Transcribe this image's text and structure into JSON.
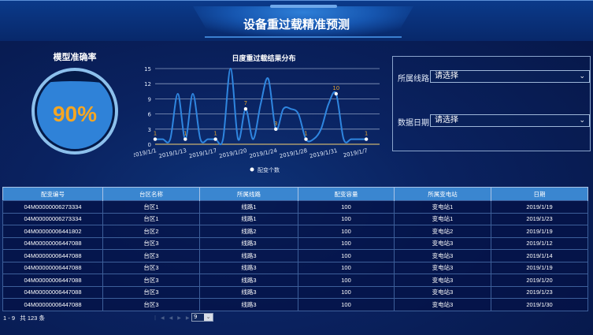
{
  "header": {
    "title": "设备重过载精准预测"
  },
  "gauge": {
    "title": "模型准确率",
    "value_label": "90%",
    "value": 0.9,
    "fill_color": "#2f82d8",
    "text_color": "#f5a623"
  },
  "chart_data": {
    "type": "line",
    "title": "日度重过载结果分布",
    "legend": "bottom",
    "series_name": "配变个数",
    "ylim": [
      0,
      15
    ],
    "yticks": [
      "0",
      "3",
      "6",
      "9",
      "12",
      "15"
    ],
    "xtick_labels": [
      "2019/1/1",
      "2019/1/13",
      "2019/1/17",
      "2019/1/20",
      "2019/1/24",
      "2019/1/28",
      "2019/1/31",
      "2019/1/7"
    ],
    "values": [
      1,
      1,
      1,
      10,
      1,
      10,
      1,
      1,
      1,
      1,
      15,
      1,
      7,
      1,
      8,
      13,
      3,
      7,
      7,
      6,
      1,
      1,
      3,
      8,
      10,
      1,
      1,
      1,
      1
    ],
    "labeled_points": [
      {
        "index": 0,
        "label": "1"
      },
      {
        "index": 4,
        "label": "1"
      },
      {
        "index": 8,
        "label": "1"
      },
      {
        "index": 12,
        "label": "7"
      },
      {
        "index": 16,
        "label": "3"
      },
      {
        "index": 20,
        "label": "1"
      },
      {
        "index": 24,
        "label": "10"
      },
      {
        "index": 28,
        "label": "1"
      }
    ],
    "line_color": "#2f86e0",
    "label_color": "#e0a030",
    "grid": true
  },
  "filters": {
    "line": {
      "label": "所属线路",
      "placeholder": "请选择"
    },
    "date": {
      "label": "数据日期",
      "placeholder": "请选择"
    }
  },
  "table": {
    "headers": [
      "配变编号",
      "台区名称",
      "所属线路",
      "配变容量",
      "所属变电站",
      "日期"
    ],
    "rows": [
      [
        "04M00000006273334",
        "台区1",
        "线路1",
        "100",
        "变电站1",
        "2019/1/19"
      ],
      [
        "04M00000006273334",
        "台区1",
        "线路1",
        "100",
        "变电站1",
        "2019/1/23"
      ],
      [
        "04M00000006441802",
        "台区2",
        "线路2",
        "100",
        "变电站2",
        "2019/1/19"
      ],
      [
        "04M00000006447088",
        "台区3",
        "线路3",
        "100",
        "变电站3",
        "2019/1/12"
      ],
      [
        "04M00000006447088",
        "台区3",
        "线路3",
        "100",
        "变电站3",
        "2019/1/14"
      ],
      [
        "04M00000006447088",
        "台区3",
        "线路3",
        "100",
        "变电站3",
        "2019/1/19"
      ],
      [
        "04M00000006447088",
        "台区3",
        "线路3",
        "100",
        "变电站3",
        "2019/1/20"
      ],
      [
        "04M00000006447088",
        "台区3",
        "线路3",
        "100",
        "变电站3",
        "2019/1/23"
      ],
      [
        "04M00000006447088",
        "台区3",
        "线路3",
        "100",
        "变电站3",
        "2019/1/30"
      ]
    ]
  },
  "pager": {
    "summary": "1 - 9   共 123 条",
    "page_size": "9"
  }
}
